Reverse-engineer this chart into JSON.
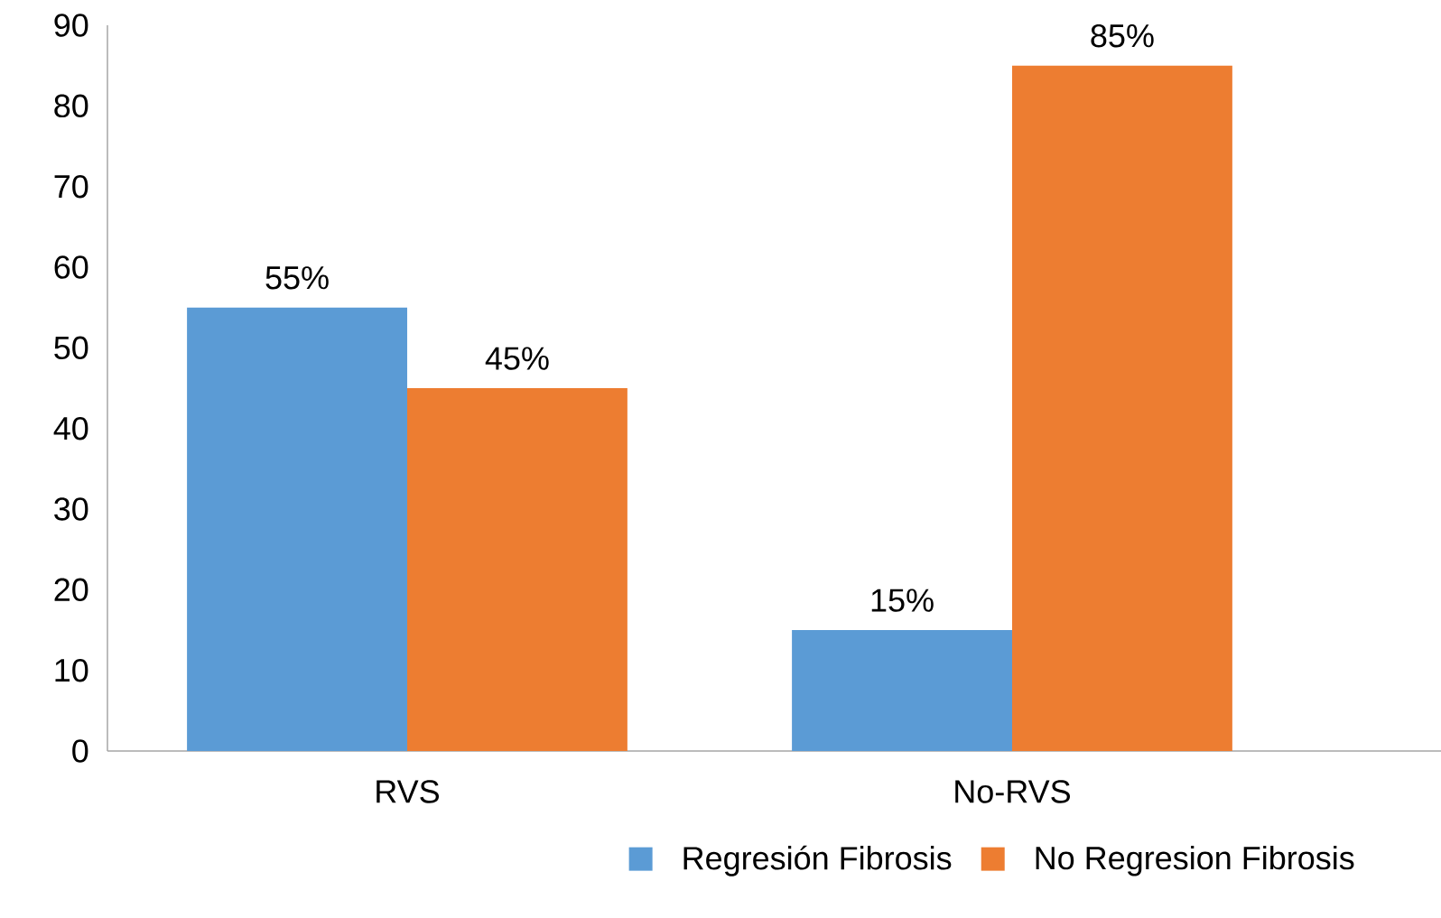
{
  "chart_data": {
    "type": "bar",
    "categories": [
      "RVS",
      "No-RVS"
    ],
    "series": [
      {
        "name": "Regresión Fibrosis",
        "color": "#5b9bd5",
        "values": [
          55,
          15
        ],
        "value_labels": [
          "55%",
          "15%"
        ]
      },
      {
        "name": "No Regresion Fibrosis",
        "color": "#ed7d31",
        "values": [
          45,
          85
        ],
        "value_labels": [
          "45%",
          "85%"
        ]
      }
    ],
    "ylim": [
      0,
      90
    ],
    "yticks": [
      0,
      10,
      20,
      30,
      40,
      50,
      60,
      70,
      80,
      90
    ],
    "grid": false,
    "legend": "bottom"
  }
}
